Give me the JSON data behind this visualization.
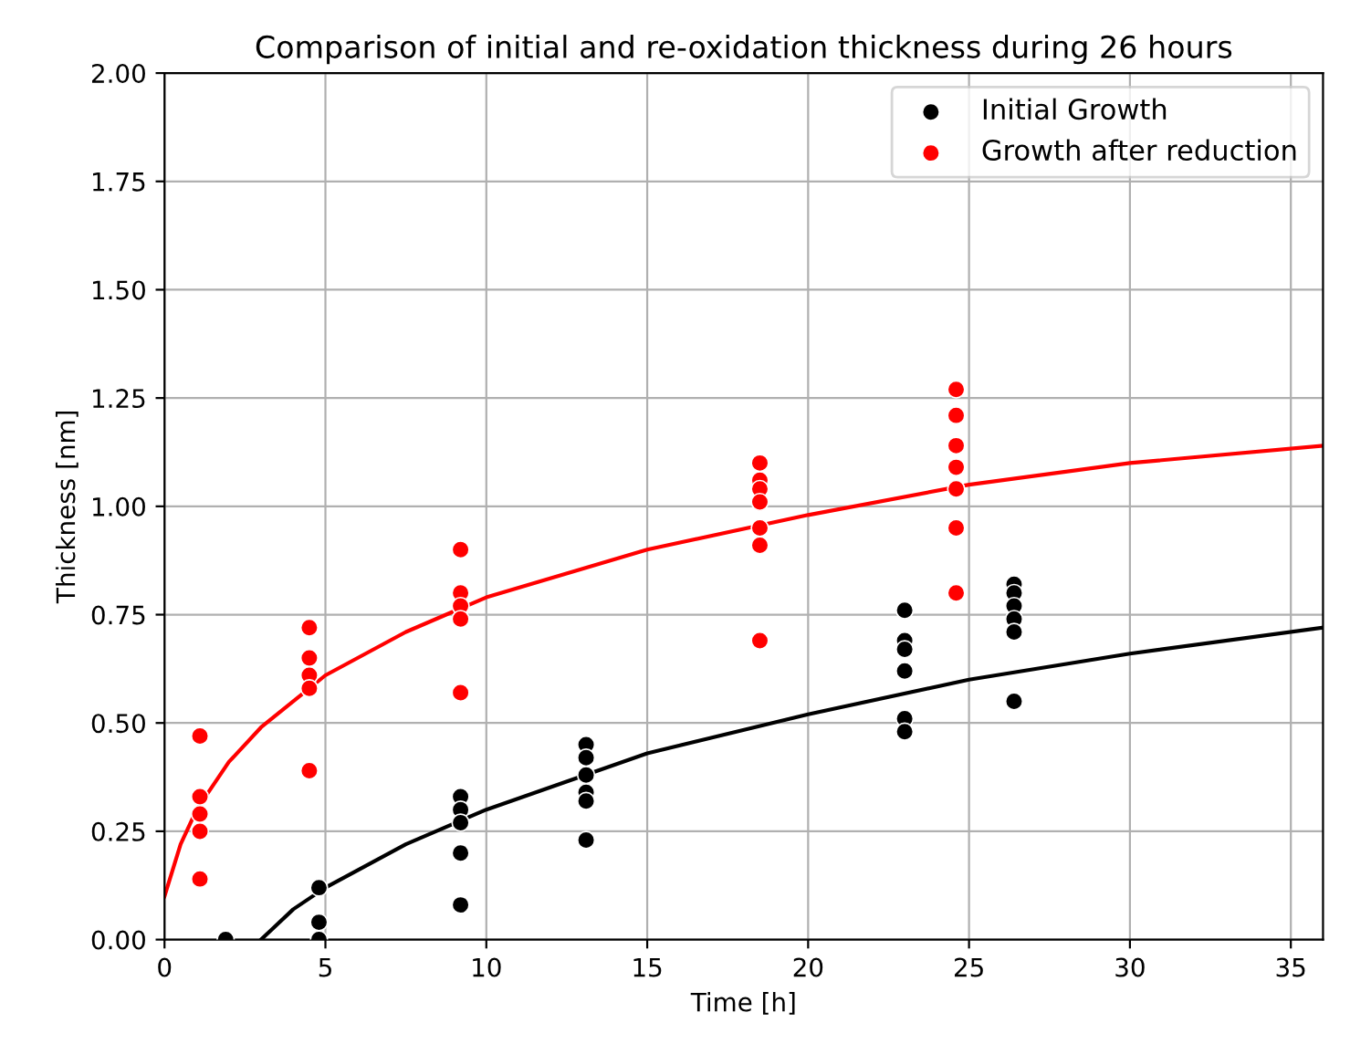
{
  "chart_data": {
    "type": "scatter",
    "title": "Comparison of initial and re-oxidation thickness during 26 hours",
    "xlabel": "Time [h]",
    "ylabel": "Thickness [nm]",
    "xlim": [
      0,
      36
    ],
    "ylim": [
      0,
      2.0
    ],
    "xticks": [
      0,
      5,
      10,
      15,
      20,
      25,
      30,
      35
    ],
    "yticks": [
      {
        "value": 0,
        "label": "0.00"
      },
      {
        "value": 0.25,
        "label": "0.25"
      },
      {
        "value": 0.5,
        "label": "0.50"
      },
      {
        "value": 0.75,
        "label": "0.75"
      },
      {
        "value": 1.0,
        "label": "1.00"
      },
      {
        "value": 1.25,
        "label": "1.25"
      },
      {
        "value": 1.5,
        "label": "1.50"
      },
      {
        "value": 1.75,
        "label": "1.75"
      },
      {
        "value": 2.0,
        "label": "2.00"
      }
    ],
    "grid": true,
    "legend": "top right",
    "marker": "circle",
    "series": [
      {
        "name": "Initial Growth",
        "color": "#000000",
        "x": [
          1.9,
          4.8,
          4.8,
          4.8,
          9.2,
          9.2,
          9.2,
          9.2,
          9.2,
          13.1,
          13.1,
          13.1,
          13.1,
          13.1,
          13.1,
          23.0,
          23.0,
          23.0,
          23.0,
          23.0,
          23.0,
          26.4,
          26.4,
          26.4,
          26.4,
          26.4,
          26.4
        ],
        "values": [
          0.0,
          0.12,
          0.04,
          0.0,
          0.33,
          0.3,
          0.27,
          0.2,
          0.08,
          0.45,
          0.42,
          0.38,
          0.34,
          0.32,
          0.23,
          0.76,
          0.69,
          0.67,
          0.62,
          0.51,
          0.48,
          0.82,
          0.8,
          0.77,
          0.74,
          0.71,
          0.55
        ]
      },
      {
        "name": "Growth after reduction",
        "color": "#ff0000",
        "x": [
          1.1,
          1.1,
          1.1,
          1.1,
          1.1,
          4.5,
          4.5,
          4.5,
          4.5,
          4.5,
          9.2,
          9.2,
          9.2,
          9.2,
          9.2,
          18.5,
          18.5,
          18.5,
          18.5,
          18.5,
          18.5,
          18.5,
          24.6,
          24.6,
          24.6,
          24.6,
          24.6,
          24.6,
          24.6
        ],
        "values": [
          0.47,
          0.33,
          0.29,
          0.25,
          0.14,
          0.72,
          0.65,
          0.61,
          0.58,
          0.39,
          0.9,
          0.8,
          0.77,
          0.74,
          0.57,
          1.1,
          1.06,
          1.04,
          1.01,
          0.95,
          0.91,
          0.69,
          1.27,
          1.21,
          1.14,
          1.09,
          1.04,
          0.95,
          0.8
        ]
      },
      {
        "type": "line",
        "color": "#000000",
        "marker": "none",
        "x": [
          3,
          4,
          5,
          7.5,
          10,
          15,
          20,
          25,
          30,
          36
        ],
        "values": [
          0.0,
          0.07,
          0.12,
          0.22,
          0.3,
          0.43,
          0.52,
          0.6,
          0.66,
          0.72
        ]
      },
      {
        "type": "line",
        "color": "#ff0000",
        "marker": "none",
        "x": [
          0,
          0.5,
          1,
          2,
          3,
          5,
          7.5,
          10,
          15,
          20,
          25,
          30,
          36
        ],
        "values": [
          0.1,
          0.22,
          0.3,
          0.41,
          0.49,
          0.61,
          0.71,
          0.79,
          0.9,
          0.98,
          1.05,
          1.1,
          1.14
        ]
      }
    ]
  }
}
